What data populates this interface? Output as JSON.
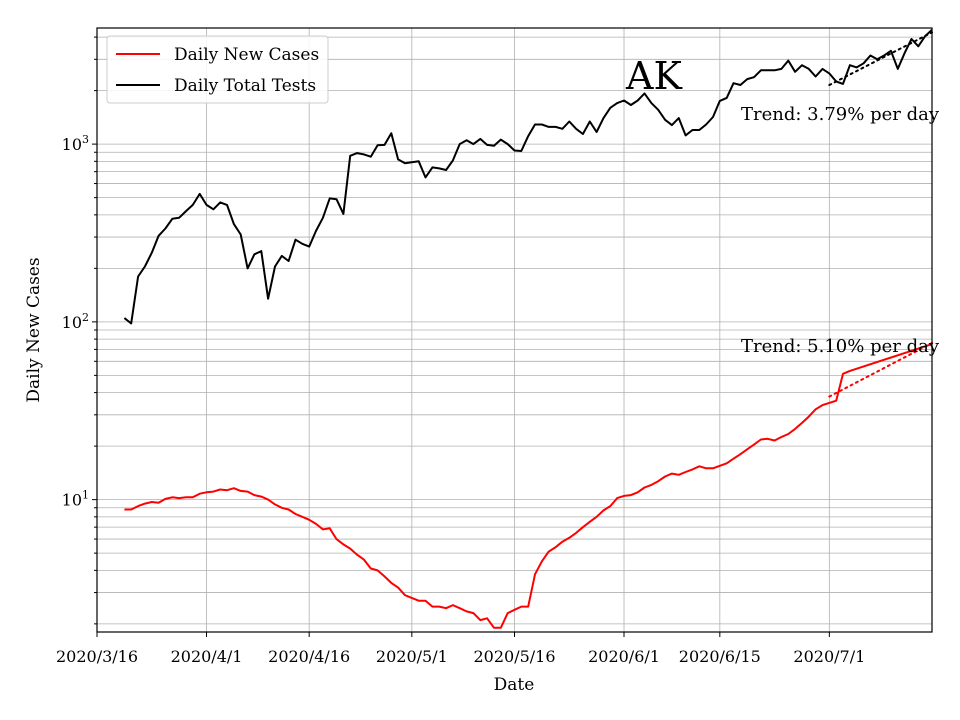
{
  "chart_data": {
    "type": "line",
    "title": "",
    "xlabel": "Date",
    "ylabel": "Daily New Cases",
    "yscale": "log",
    "ylim": [
      1.8,
      4500
    ],
    "xlim": [
      "2020/3/16",
      "2020/7/16"
    ],
    "grid": true,
    "legend_position": "top-left",
    "x_ticks": [
      {
        "date": "2020/3/16",
        "label": "2020/3/16"
      },
      {
        "date": "2020/4/1",
        "label": "2020/4/1"
      },
      {
        "date": "2020/4/16",
        "label": "2020/4/16"
      },
      {
        "date": "2020/5/1",
        "label": "2020/5/1"
      },
      {
        "date": "2020/5/16",
        "label": "2020/5/16"
      },
      {
        "date": "2020/6/1",
        "label": "2020/6/1"
      },
      {
        "date": "2020/6/15",
        "label": "2020/6/15"
      },
      {
        "date": "2020/7/1",
        "label": "2020/7/1"
      }
    ],
    "y_ticks": [
      {
        "value": 10,
        "base": "10",
        "exp": "1"
      },
      {
        "value": 100,
        "base": "10",
        "exp": "2"
      },
      {
        "value": 1000,
        "base": "10",
        "exp": "3"
      }
    ],
    "annotations": {
      "state": "AK",
      "tests_trend": "Trend: 3.79% per day",
      "cases_trend": "Trend: 5.10% per day"
    },
    "series": [
      {
        "name": "Daily New Cases",
        "color": "#ff0000",
        "x": [
          "2020/3/20",
          "2020/3/21",
          "2020/3/22",
          "2020/3/23",
          "2020/3/24",
          "2020/3/25",
          "2020/3/26",
          "2020/3/27",
          "2020/3/28",
          "2020/3/29",
          "2020/3/30",
          "2020/3/31",
          "2020/4/1",
          "2020/4/2",
          "2020/4/3",
          "2020/4/4",
          "2020/4/5",
          "2020/4/6",
          "2020/4/7",
          "2020/4/8",
          "2020/4/9",
          "2020/4/10",
          "2020/4/11",
          "2020/4/12",
          "2020/4/13",
          "2020/4/14",
          "2020/4/15",
          "2020/4/16",
          "2020/4/17",
          "2020/4/18",
          "2020/4/19",
          "2020/4/20",
          "2020/4/21",
          "2020/4/22",
          "2020/4/23",
          "2020/4/24",
          "2020/4/25",
          "2020/4/26",
          "2020/4/27",
          "2020/4/28",
          "2020/4/29",
          "2020/4/30",
          "2020/5/1",
          "2020/5/2",
          "2020/5/3",
          "2020/5/4",
          "2020/5/5",
          "2020/5/6",
          "2020/5/7",
          "2020/5/8",
          "2020/5/9",
          "2020/5/10",
          "2020/5/11",
          "2020/5/12",
          "2020/5/13",
          "2020/5/14",
          "2020/5/15",
          "2020/5/16",
          "2020/5/17",
          "2020/5/18",
          "2020/5/19",
          "2020/5/20",
          "2020/5/21",
          "2020/5/22",
          "2020/5/23",
          "2020/5/24",
          "2020/5/25",
          "2020/5/26",
          "2020/5/27",
          "2020/5/28",
          "2020/5/29",
          "2020/5/30",
          "2020/5/31",
          "2020/6/1",
          "2020/6/2",
          "2020/6/3",
          "2020/6/4",
          "2020/6/5",
          "2020/6/6",
          "2020/6/7",
          "2020/6/8",
          "2020/6/9",
          "2020/6/10",
          "2020/6/11",
          "2020/6/12",
          "2020/6/13",
          "2020/6/14",
          "2020/6/15",
          "2020/6/16",
          "2020/6/17",
          "2020/6/18",
          "2020/6/19",
          "2020/6/20",
          "2020/6/21",
          "2020/6/22",
          "2020/6/23",
          "2020/6/24",
          "2020/6/25",
          "2020/6/26",
          "2020/6/27",
          "2020/6/28",
          "2020/6/29",
          "2020/6/30",
          "2020/7/1",
          "2020/7/2",
          "2020/7/3",
          "2020/7/4",
          "2020/7/16"
        ],
        "y": [
          8.8,
          8.8,
          9.2,
          9.5,
          9.7,
          9.6,
          10.1,
          10.3,
          10.2,
          10.3,
          10.3,
          10.8,
          11.0,
          11.1,
          11.4,
          11.3,
          11.6,
          11.2,
          11.1,
          10.6,
          10.4,
          10.0,
          9.4,
          9.0,
          8.8,
          8.3,
          8.0,
          7.7,
          7.3,
          6.8,
          6.9,
          6.0,
          5.6,
          5.3,
          4.9,
          4.6,
          4.1,
          4.0,
          3.7,
          3.4,
          3.2,
          2.9,
          2.8,
          2.7,
          2.7,
          2.5,
          2.5,
          2.45,
          2.55,
          2.45,
          2.35,
          2.3,
          2.1,
          2.15,
          1.9,
          1.9,
          2.3,
          2.4,
          2.5,
          2.5,
          3.8,
          4.5,
          5.1,
          5.4,
          5.8,
          6.1,
          6.5,
          7.0,
          7.5,
          8.0,
          8.7,
          9.2,
          10.2,
          10.5,
          10.6,
          11.0,
          11.7,
          12.1,
          12.7,
          13.5,
          14.0,
          13.8,
          14.3,
          14.8,
          15.4,
          15.0,
          15.0,
          15.5,
          16.0,
          17.0,
          18.0,
          19.2,
          20.4,
          21.8,
          22.0,
          21.5,
          22.5,
          23.4,
          25.0,
          27.0,
          29.3,
          32.2,
          34.0,
          35.0,
          36.0,
          51.0,
          53.0,
          75.0
        ]
      },
      {
        "name": "Daily Total Tests",
        "color": "#000000",
        "x": [
          "2020/3/20",
          "2020/3/21",
          "2020/3/22",
          "2020/3/23",
          "2020/3/24",
          "2020/3/25",
          "2020/3/26",
          "2020/3/27",
          "2020/3/28",
          "2020/3/29",
          "2020/3/30",
          "2020/3/31",
          "2020/4/1",
          "2020/4/2",
          "2020/4/3",
          "2020/4/4",
          "2020/4/5",
          "2020/4/6",
          "2020/4/7",
          "2020/4/8",
          "2020/4/9",
          "2020/4/10",
          "2020/4/11",
          "2020/4/12",
          "2020/4/13",
          "2020/4/14",
          "2020/4/15",
          "2020/4/16",
          "2020/4/17",
          "2020/4/18",
          "2020/4/19",
          "2020/4/20",
          "2020/4/21",
          "2020/4/22",
          "2020/4/23",
          "2020/4/24",
          "2020/4/25",
          "2020/4/26",
          "2020/4/27",
          "2020/4/28",
          "2020/4/29",
          "2020/4/30",
          "2020/5/1",
          "2020/5/2",
          "2020/5/3",
          "2020/5/4",
          "2020/5/5",
          "2020/5/6",
          "2020/5/7",
          "2020/5/8",
          "2020/5/9",
          "2020/5/10",
          "2020/5/11",
          "2020/5/12",
          "2020/5/13",
          "2020/5/14",
          "2020/5/15",
          "2020/5/16",
          "2020/5/17",
          "2020/5/18",
          "2020/5/19",
          "2020/5/20",
          "2020/5/21",
          "2020/5/22",
          "2020/5/23",
          "2020/5/24",
          "2020/5/25",
          "2020/5/26",
          "2020/5/27",
          "2020/5/28",
          "2020/5/29",
          "2020/5/30",
          "2020/5/31",
          "2020/6/1",
          "2020/6/2",
          "2020/6/3",
          "2020/6/4",
          "2020/6/5",
          "2020/6/6",
          "2020/6/7",
          "2020/6/8",
          "2020/6/9",
          "2020/6/10",
          "2020/6/11",
          "2020/6/12",
          "2020/6/13",
          "2020/6/14",
          "2020/6/15",
          "2020/6/16",
          "2020/6/17",
          "2020/6/18",
          "2020/6/19",
          "2020/6/20",
          "2020/6/21",
          "2020/6/22",
          "2020/6/23",
          "2020/6/24",
          "2020/6/25",
          "2020/6/26",
          "2020/6/27",
          "2020/6/28",
          "2020/6/29",
          "2020/6/30",
          "2020/7/1",
          "2020/7/2",
          "2020/7/3",
          "2020/7/4",
          "2020/7/5",
          "2020/7/6",
          "2020/7/7",
          "2020/7/8",
          "2020/7/9",
          "2020/7/10",
          "2020/7/11",
          "2020/7/12",
          "2020/7/13",
          "2020/7/14",
          "2020/7/15",
          "2020/7/16"
        ],
        "y": [
          105,
          98,
          180,
          205,
          245,
          305,
          335,
          380,
          385,
          420,
          455,
          525,
          455,
          430,
          470,
          455,
          355,
          310,
          200,
          240,
          250,
          135,
          205,
          235,
          220,
          290,
          275,
          265,
          325,
          385,
          495,
          490,
          405,
          860,
          890,
          875,
          850,
          985,
          990,
          1150,
          820,
          780,
          790,
          800,
          650,
          740,
          730,
          715,
          810,
          1000,
          1050,
          1000,
          1070,
          990,
          980,
          1060,
          1000,
          920,
          915,
          1110,
          1290,
          1290,
          1250,
          1250,
          1220,
          1340,
          1220,
          1140,
          1340,
          1170,
          1400,
          1600,
          1700,
          1760,
          1660,
          1760,
          1930,
          1700,
          1560,
          1370,
          1280,
          1400,
          1120,
          1200,
          1200,
          1290,
          1420,
          1750,
          1820,
          2200,
          2150,
          2320,
          2380,
          2600,
          2600,
          2600,
          2650,
          2950,
          2550,
          2780,
          2650,
          2400,
          2650,
          2500,
          2250,
          2180,
          2780,
          2700,
          2850,
          3150,
          3000,
          3150,
          3350,
          2650,
          3250,
          3900,
          3550,
          4050,
          4400
        ]
      }
    ],
    "trend_lines": [
      {
        "series": "Daily Total Tests",
        "style": "dotted",
        "x": [
          "2020/7/1",
          "2020/7/16"
        ],
        "y": [
          2150,
          4250
        ]
      },
      {
        "series": "Daily New Cases",
        "style": "dotted",
        "x": [
          "2020/7/1",
          "2020/7/16"
        ],
        "y": [
          38,
          76
        ]
      }
    ]
  }
}
